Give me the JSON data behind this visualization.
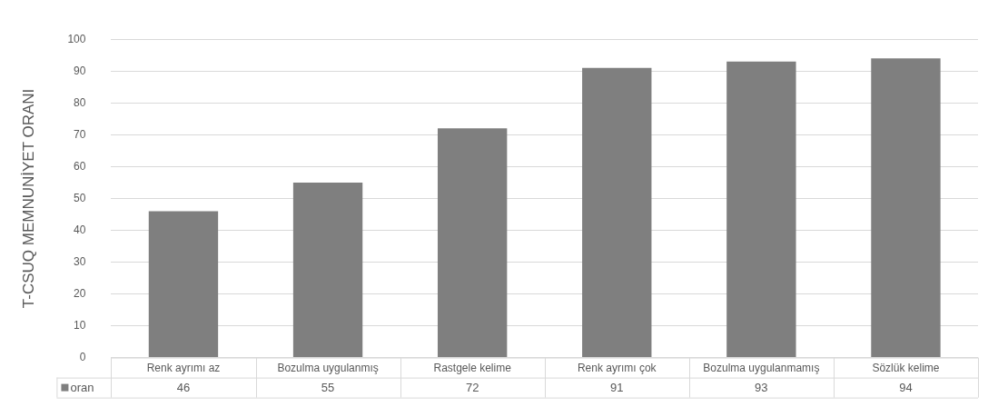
{
  "chart_data": {
    "type": "bar",
    "ylabel": "T-CSUQ MEMNUNİYET ORANI",
    "categories": [
      "Renk ayrımı az",
      "Bozulma uygulanmış",
      "Rastgele kelime",
      "Renk ayrımı çok",
      "Bozulma uygulanmamış",
      "Sözlük kelime"
    ],
    "series": [
      {
        "name": "oran",
        "color": "#7f7f7f",
        "values": [
          46,
          55,
          72,
          91,
          93,
          94
        ]
      }
    ],
    "ylim": [
      0,
      100
    ],
    "yticks": [
      0,
      10,
      20,
      30,
      40,
      50,
      60,
      70,
      80,
      90,
      100
    ],
    "grid": "y",
    "legend": "bottom",
    "data_labels": true
  }
}
